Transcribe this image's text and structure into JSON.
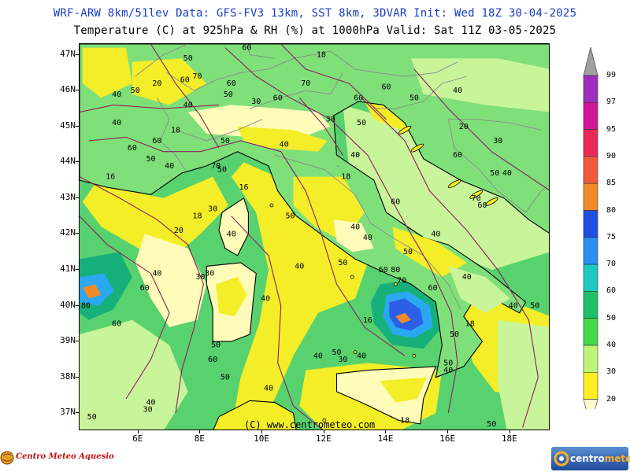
{
  "header": {
    "line1": "WRF-ARW 8km/51lev  Data: GFS-FV3 13km, SST 8km, 3DVAR  Init: Wed 18Z 30-04-2025",
    "line2": "Temperature (C) at 925hPa & RH (%) at 1000hPa  Valid: Sat 11Z 03-05-2025"
  },
  "axes": {
    "lat_labels": [
      "47N",
      "46N",
      "45N",
      "44N",
      "43N",
      "42N",
      "41N",
      "40N",
      "39N",
      "38N",
      "37N"
    ],
    "lon_labels": [
      "6E",
      "8E",
      "10E",
      "12E",
      "14E",
      "16E",
      "18E"
    ]
  },
  "legend": {
    "values": [
      "99",
      "97",
      "95",
      "90",
      "85",
      "80",
      "75",
      "70",
      "60",
      "50",
      "40",
      "30",
      "20"
    ],
    "colors": [
      "#9c2fbd",
      "#d0179a",
      "#ec2a58",
      "#f05a3a",
      "#f08b2a",
      "#1f4fe0",
      "#2a8ff0",
      "#20c9c0",
      "#1fbf6a",
      "#46d84a",
      "#bdf57a",
      "#ffee20",
      "#fffccc"
    ]
  },
  "map": {
    "colors": {
      "sea": "#57d26e",
      "humid_land": "#7fe07a",
      "dry": "#fffbb8",
      "mid": "#f4ee28",
      "pale_green": "#c8f59a",
      "blue_high": "#2c5fe6",
      "light_blue": "#2ba8f2",
      "cyan": "#23cdc0",
      "teal": "#17b07a",
      "orange": "#f08b2a",
      "red": "#ec2a58",
      "magenta": "#c81a98",
      "contour": "#8b1f5c",
      "coast": "#000000",
      "border": "#8a8a8a"
    },
    "contour_labels": [
      {
        "text": "50",
        "lat": 46.9,
        "lon": 7.6
      },
      {
        "text": "60",
        "lat": 47.2,
        "lon": 9.5
      },
      {
        "text": "18",
        "lat": 47.0,
        "lon": 11.9
      },
      {
        "text": "70",
        "lat": 46.4,
        "lon": 7.9
      },
      {
        "text": "60",
        "lat": 46.3,
        "lon": 7.5
      },
      {
        "text": "20",
        "lat": 46.2,
        "lon": 6.6
      },
      {
        "text": "50",
        "lat": 46.0,
        "lon": 5.9
      },
      {
        "text": "40",
        "lat": 45.9,
        "lon": 5.3
      },
      {
        "text": "60",
        "lat": 46.2,
        "lon": 9.0
      },
      {
        "text": "50",
        "lat": 45.9,
        "lon": 8.9
      },
      {
        "text": "30",
        "lat": 45.7,
        "lon": 9.8
      },
      {
        "text": "60",
        "lat": 45.8,
        "lon": 10.5
      },
      {
        "text": "70",
        "lat": 46.2,
        "lon": 11.4
      },
      {
        "text": "60",
        "lat": 45.8,
        "lon": 13.1
      },
      {
        "text": "60",
        "lat": 46.1,
        "lon": 14.0
      },
      {
        "text": "50",
        "lat": 45.8,
        "lon": 14.9
      },
      {
        "text": "40",
        "lat": 46.0,
        "lon": 16.3
      },
      {
        "text": "40",
        "lat": 45.6,
        "lon": 7.6
      },
      {
        "text": "40",
        "lat": 45.1,
        "lon": 5.3
      },
      {
        "text": "18",
        "lat": 44.9,
        "lon": 7.2
      },
      {
        "text": "60",
        "lat": 44.6,
        "lon": 6.6
      },
      {
        "text": "60",
        "lat": 44.4,
        "lon": 5.8
      },
      {
        "text": "50",
        "lat": 44.1,
        "lon": 6.4
      },
      {
        "text": "40",
        "lat": 43.9,
        "lon": 7.0
      },
      {
        "text": "50",
        "lat": 44.6,
        "lon": 8.8
      },
      {
        "text": "70",
        "lat": 43.9,
        "lon": 8.5
      },
      {
        "text": "50",
        "lat": 43.8,
        "lon": 8.7
      },
      {
        "text": "16",
        "lat": 43.6,
        "lon": 5.1
      },
      {
        "text": "30",
        "lat": 45.2,
        "lon": 12.2
      },
      {
        "text": "50",
        "lat": 45.1,
        "lon": 13.2
      },
      {
        "text": "40",
        "lat": 44.5,
        "lon": 10.7
      },
      {
        "text": "40",
        "lat": 44.2,
        "lon": 13.0
      },
      {
        "text": "20",
        "lat": 45.0,
        "lon": 16.5
      },
      {
        "text": "30",
        "lat": 44.6,
        "lon": 17.6
      },
      {
        "text": "60",
        "lat": 44.2,
        "lon": 16.3
      },
      {
        "text": "50",
        "lat": 43.7,
        "lon": 17.5
      },
      {
        "text": "40",
        "lat": 43.7,
        "lon": 17.9
      },
      {
        "text": "70",
        "lat": 43.0,
        "lon": 16.9
      },
      {
        "text": "60",
        "lat": 42.8,
        "lon": 17.1
      },
      {
        "text": "18",
        "lat": 43.6,
        "lon": 12.7
      },
      {
        "text": "16",
        "lat": 43.3,
        "lon": 9.4
      },
      {
        "text": "60",
        "lat": 42.9,
        "lon": 14.3
      },
      {
        "text": "50",
        "lat": 42.5,
        "lon": 10.9
      },
      {
        "text": "30",
        "lat": 42.7,
        "lon": 8.4
      },
      {
        "text": "18",
        "lat": 42.5,
        "lon": 7.9
      },
      {
        "text": "20",
        "lat": 42.1,
        "lon": 7.3
      },
      {
        "text": "40",
        "lat": 42.0,
        "lon": 9.0
      },
      {
        "text": "40",
        "lat": 42.2,
        "lon": 13.0
      },
      {
        "text": "40",
        "lat": 41.9,
        "lon": 13.4
      },
      {
        "text": "40",
        "lat": 42.0,
        "lon": 15.6
      },
      {
        "text": "50",
        "lat": 41.5,
        "lon": 14.7
      },
      {
        "text": "50",
        "lat": 41.2,
        "lon": 12.6
      },
      {
        "text": "40",
        "lat": 41.1,
        "lon": 11.2
      },
      {
        "text": "60",
        "lat": 41.0,
        "lon": 13.9
      },
      {
        "text": "80",
        "lat": 41.0,
        "lon": 14.3
      },
      {
        "text": "70",
        "lat": 40.7,
        "lon": 14.5
      },
      {
        "text": "60",
        "lat": 40.5,
        "lon": 15.5
      },
      {
        "text": "40",
        "lat": 40.8,
        "lon": 16.6
      },
      {
        "text": "40",
        "lat": 40.0,
        "lon": 18.1
      },
      {
        "text": "50",
        "lat": 40.0,
        "lon": 18.8
      },
      {
        "text": "18",
        "lat": 39.5,
        "lon": 16.7
      },
      {
        "text": "50",
        "lat": 39.2,
        "lon": 16.2
      },
      {
        "text": "40",
        "lat": 40.9,
        "lon": 6.6
      },
      {
        "text": "30",
        "lat": 40.8,
        "lon": 8.0
      },
      {
        "text": "30",
        "lat": 40.9,
        "lon": 8.3
      },
      {
        "text": "60",
        "lat": 40.5,
        "lon": 6.2
      },
      {
        "text": "60",
        "lat": 39.5,
        "lon": 5.3
      },
      {
        "text": "80",
        "lat": 40.0,
        "lon": 4.3
      },
      {
        "text": "40",
        "lat": 40.2,
        "lon": 10.1
      },
      {
        "text": "16",
        "lat": 39.6,
        "lon": 13.4
      },
      {
        "text": "50",
        "lat": 38.9,
        "lon": 8.5
      },
      {
        "text": "60",
        "lat": 38.5,
        "lon": 8.4
      },
      {
        "text": "50",
        "lat": 38.0,
        "lon": 8.8
      },
      {
        "text": "40",
        "lat": 38.6,
        "lon": 11.8
      },
      {
        "text": "50",
        "lat": 38.7,
        "lon": 12.4
      },
      {
        "text": "30",
        "lat": 38.5,
        "lon": 12.6
      },
      {
        "text": "40",
        "lat": 38.6,
        "lon": 13.2
      },
      {
        "text": "50",
        "lat": 38.4,
        "lon": 16.0
      },
      {
        "text": "40",
        "lat": 38.2,
        "lon": 16.0
      },
      {
        "text": "40",
        "lat": 37.7,
        "lon": 10.2
      },
      {
        "text": "40",
        "lat": 37.3,
        "lon": 6.4
      },
      {
        "text": "30",
        "lat": 37.1,
        "lon": 6.3
      },
      {
        "text": "50",
        "lat": 36.9,
        "lon": 4.5
      },
      {
        "text": "18",
        "lat": 36.8,
        "lon": 14.6
      },
      {
        "text": "50",
        "lat": 36.7,
        "lon": 17.4
      }
    ]
  },
  "footer": {
    "copyright": "(C) www.centrometeo.com",
    "logo_left": "Centro Meteo Aquesio",
    "logo_right_a": "centro",
    "logo_right_b": "meteo"
  }
}
